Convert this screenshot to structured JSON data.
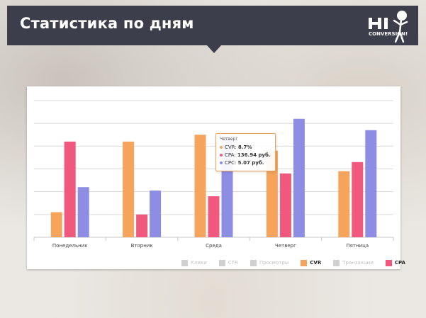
{
  "header": {
    "title": "Статистика по дням"
  },
  "logo": {
    "line1": "HI",
    "line2": "CONVERSION!"
  },
  "colors": {
    "header_bg": "#3d3e4b",
    "CVR": "#f6a45c",
    "CPA": "#f0587d",
    "CPC": "#8c8de3",
    "legend_off": "#d0d0d0"
  },
  "tooltip": {
    "title": "Четверг",
    "rows": [
      {
        "label": "CVR:",
        "value": "8.7%",
        "color": "#f6a45c"
      },
      {
        "label": "CPA:",
        "value": "136.94 руб.",
        "color": "#f0587d"
      },
      {
        "label": "CPC:",
        "value": "5.07 руб.",
        "color": "#8c8de3"
      }
    ]
  },
  "legend": [
    {
      "label": "Клики",
      "active": false
    },
    {
      "label": "CTR",
      "active": false
    },
    {
      "label": "Просмотры",
      "active": false
    },
    {
      "label": "CVR",
      "active": true,
      "color": "#f6a45c"
    },
    {
      "label": "Транзакции",
      "active": false
    },
    {
      "label": "CPA",
      "active": true,
      "color": "#f0587d"
    }
  ],
  "chart_data": {
    "type": "bar",
    "categories": [
      "Понедельник",
      "Вторник",
      "Среда",
      "Четверг",
      "Пятница"
    ],
    "series": [
      {
        "name": "CVR",
        "color": "#f6a45c",
        "values": [
          1.1,
          4.2,
          4.5,
          3.8,
          2.9
        ]
      },
      {
        "name": "CPA",
        "color": "#f0587d",
        "values": [
          4.2,
          1.0,
          1.8,
          2.8,
          3.3
        ]
      },
      {
        "name": "CPC",
        "color": "#8c8de3",
        "values": [
          2.2,
          2.05,
          4.4,
          5.2,
          4.7
        ]
      }
    ],
    "ylim": [
      0,
      6
    ],
    "grid": true
  }
}
